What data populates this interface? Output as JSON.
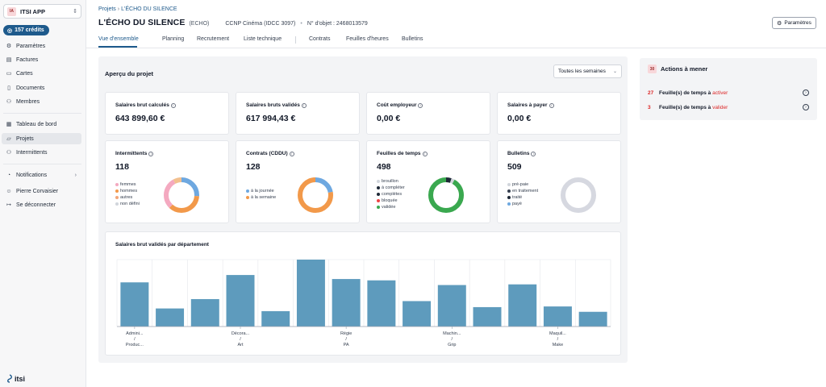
{
  "app": {
    "badge": "IA",
    "name": "ITSI APP"
  },
  "credits": {
    "label": "157 crédits"
  },
  "sidebar": {
    "top_items": [
      {
        "label": "Paramètres",
        "icon": "gear-icon"
      },
      {
        "label": "Factures",
        "icon": "receipt-icon"
      },
      {
        "label": "Cartes",
        "icon": "card-icon"
      },
      {
        "label": "Documents",
        "icon": "document-icon"
      },
      {
        "label": "Membres",
        "icon": "users-icon"
      }
    ],
    "main_items": [
      {
        "label": "Tableau de bord",
        "icon": "dashboard-icon"
      },
      {
        "label": "Projets",
        "icon": "folder-icon",
        "active": true
      },
      {
        "label": "Intermittents",
        "icon": "users-icon"
      }
    ],
    "bottom_items": [
      {
        "label": "Notifications",
        "icon": "bell-icon"
      },
      {
        "label": "Pierre Corvaisier",
        "icon": "user-icon"
      },
      {
        "label": "Se déconnecter",
        "icon": "logout-icon"
      }
    ],
    "logo_text": "itsi"
  },
  "breadcrumb": {
    "root": "Projets",
    "current": "L'ÉCHO DU SILENCE"
  },
  "project": {
    "title": "L'ÉCHO DU SILENCE",
    "code": "(ECHO)",
    "convention": "CCNP Cinéma (IDCC 3097)",
    "object_label": "N° d'objet :",
    "object_number": "2468013579"
  },
  "header": {
    "settings_label": "Paramètres"
  },
  "tabs": [
    "Vue d'ensemble",
    "Planning",
    "Recrutement",
    "Liste technique",
    "Contrats",
    "Feuilles d'heures",
    "Bulletins"
  ],
  "overview": {
    "title": "Aperçu du projet",
    "weeks_select": "Toutes les semaines"
  },
  "stats": [
    {
      "label": "Salaires brut calculés",
      "value": "643 899,60 €"
    },
    {
      "label": "Salaires bruts validés",
      "value": "617 994,43 €"
    },
    {
      "label": "Coût employeur",
      "value": "0,00 €"
    },
    {
      "label": "Salaires à payer",
      "value": "0,00 €"
    }
  ],
  "breakdowns": [
    {
      "label": "Intermittents",
      "value": "118",
      "legend": [
        {
          "name": "femmes",
          "color": "#f4a9c0"
        },
        {
          "name": "hommes",
          "color": "#f2994a"
        },
        {
          "name": "autres",
          "color": "#f2a679"
        },
        {
          "name": "non défini",
          "color": "#d1d5db"
        }
      ],
      "segments": [
        {
          "value": 0.26,
          "color": "#6ea8e0"
        },
        {
          "value": 0.36,
          "color": "#f2994a"
        },
        {
          "value": 0.3,
          "color": "#f4a9c0"
        },
        {
          "value": 0.08,
          "color": "#f2c08f"
        }
      ]
    },
    {
      "label": "Contrats (CDDU)",
      "value": "128",
      "legend": [
        {
          "name": "à la journée",
          "color": "#6ea8e0"
        },
        {
          "name": "à la semaine",
          "color": "#f2994a"
        }
      ],
      "segments": [
        {
          "value": 0.22,
          "color": "#6ea8e0"
        },
        {
          "value": 0.78,
          "color": "#f2994a"
        }
      ]
    },
    {
      "label": "Feuilles de temps",
      "value": "498",
      "legend": [
        {
          "name": "brouillon",
          "color": "#d1d5db"
        },
        {
          "name": "à compléter",
          "color": "#1f2937"
        },
        {
          "name": "complétes",
          "color": "#1f2937"
        },
        {
          "name": "bloquée",
          "color": "#ef4444"
        },
        {
          "name": "validée",
          "color": "#3aa84f"
        }
      ],
      "segments": [
        {
          "value": 0.05,
          "color": "#1f2937"
        },
        {
          "value": 0.03,
          "color": "#d1d5db"
        },
        {
          "value": 0.92,
          "color": "#3aa84f"
        }
      ]
    },
    {
      "label": "Bulletins",
      "value": "509",
      "legend": [
        {
          "name": "pré-paie",
          "color": "#d1d5db"
        },
        {
          "name": "en traitement",
          "color": "#374151"
        },
        {
          "name": "traité",
          "color": "#1f2937"
        },
        {
          "name": "payé",
          "color": "#6ea8e0"
        }
      ],
      "segments": [
        {
          "value": 1.0,
          "color": "#d6d8e0"
        }
      ]
    }
  ],
  "chart_data": {
    "type": "bar",
    "title": "Salaires brut validés par département",
    "categories": [
      "Admini... / Produc...",
      "",
      "",
      "Décora... / Art",
      "",
      "",
      "Régie / PA",
      "",
      "",
      "Machin... / Grip",
      "",
      "",
      "Maquil... / Make",
      ""
    ],
    "tick_labels": [
      {
        "index": 0,
        "line1": "Admini...",
        "line2": "Produc..."
      },
      {
        "index": 3,
        "line1": "Décora...",
        "line2": "Art"
      },
      {
        "index": 6,
        "line1": "Régie",
        "line2": "PA"
      },
      {
        "index": 9,
        "line1": "Machin...",
        "line2": "Grip"
      },
      {
        "index": 12,
        "line1": "Maquil...",
        "line2": "Make"
      }
    ],
    "values": [
      66,
      27,
      41,
      77,
      23,
      100,
      71,
      69,
      38,
      62,
      29,
      63,
      30,
      22
    ],
    "ylim": [
      0,
      100
    ],
    "color": "#5e9bbd",
    "grid": true
  },
  "actions": {
    "badge": "30",
    "title": "Actions à mener",
    "items": [
      {
        "count": "27",
        "text": "Feuille(s) de temps à",
        "highlight": "activer"
      },
      {
        "count": "3",
        "text": "Feuille(s) de temps à",
        "highlight": "valider"
      }
    ]
  }
}
